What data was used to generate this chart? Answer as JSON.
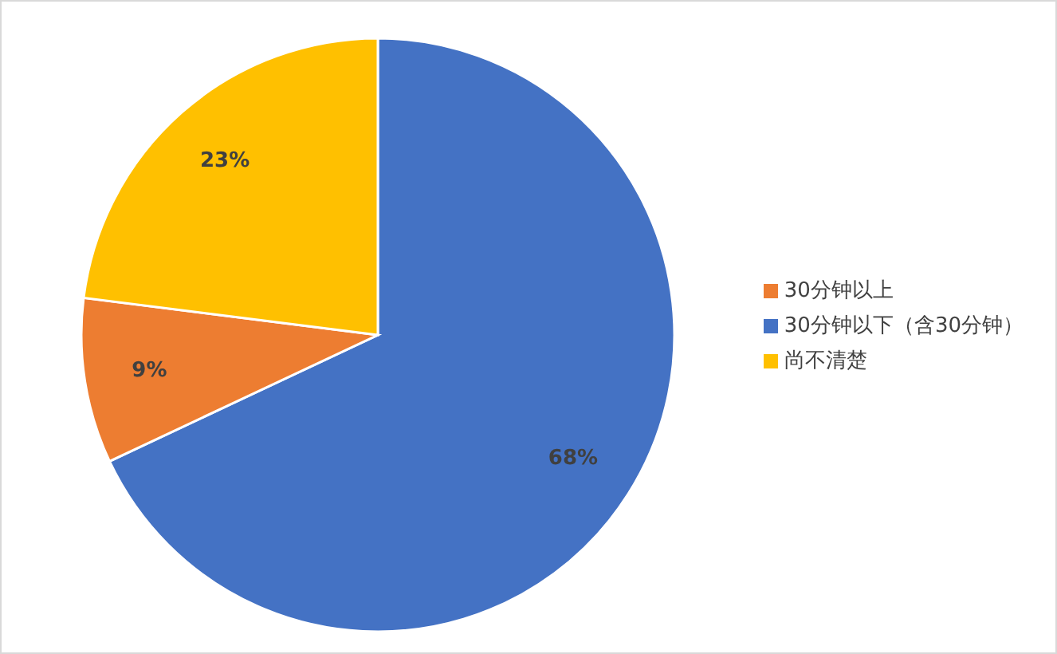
{
  "chart_data": {
    "type": "pie",
    "categories": [
      "30分钟以下（含30分钟）",
      "30分钟以上",
      "尚不清楚"
    ],
    "values": [
      68,
      9,
      23
    ],
    "colors": [
      "#4472c4",
      "#ed7d31",
      "#ffc000"
    ],
    "value_labels": [
      "68%",
      "9%",
      "23%"
    ],
    "legend": "right"
  }
}
